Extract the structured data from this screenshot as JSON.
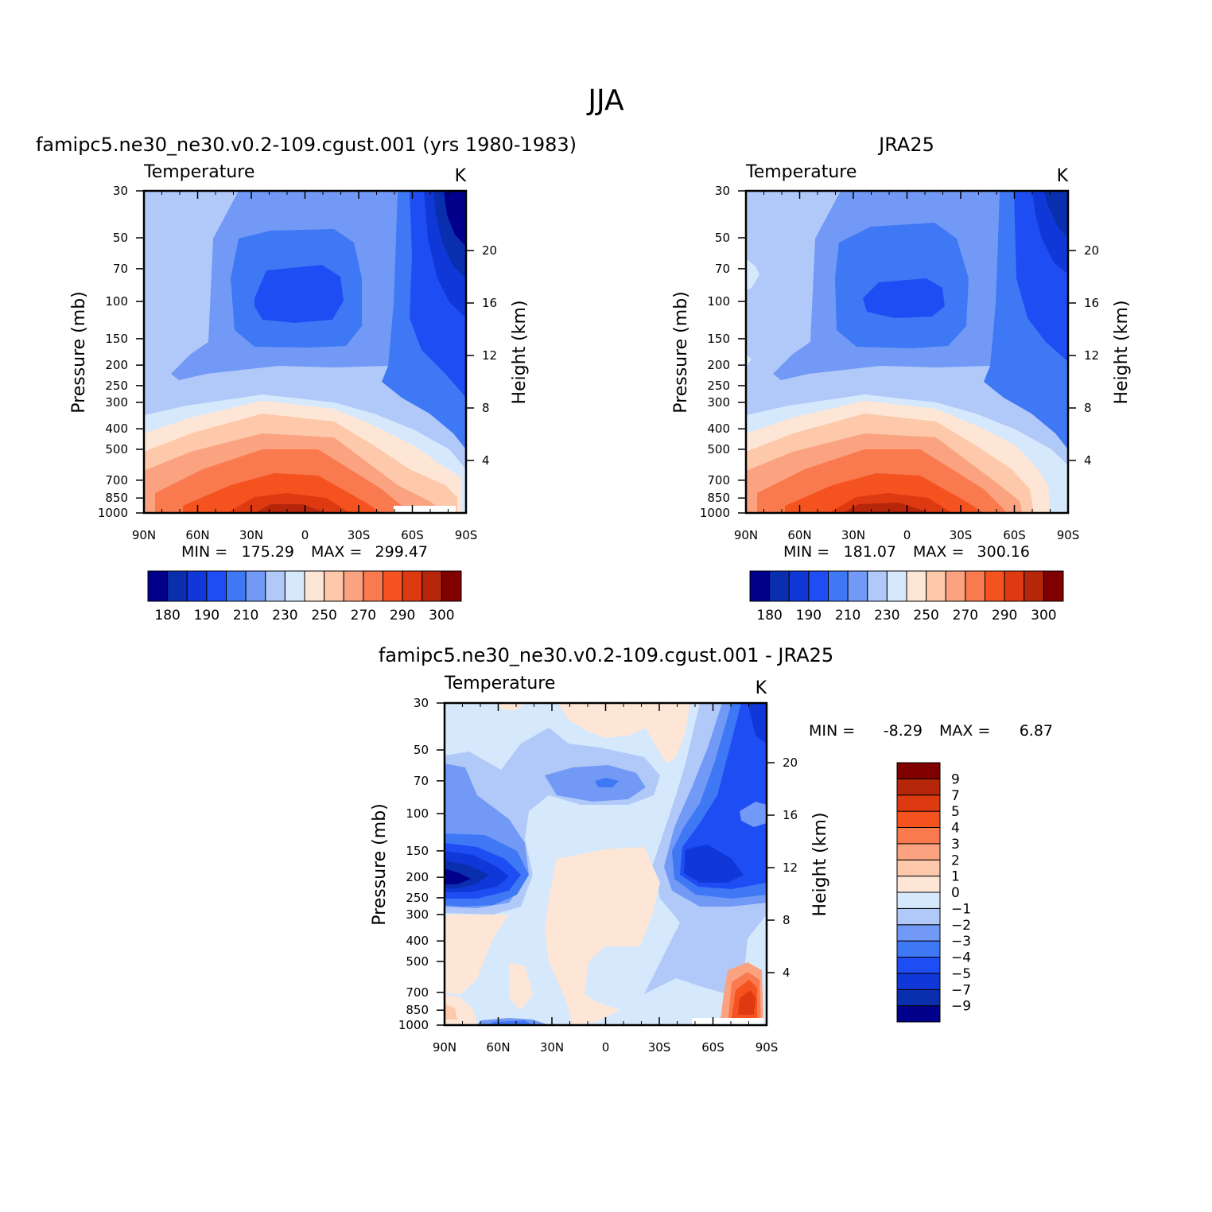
{
  "figure": {
    "title": "JJA"
  },
  "chart_data": [
    {
      "type": "heatmap",
      "title": "famipc5.ne30_ne30.v0.2-109.cgust.001 (yrs 1980-1983)",
      "variable": "Temperature",
      "units": "K",
      "ylabel": "Pressure (mb)",
      "ylabel_right": "Height (km)",
      "x_ticks": [
        "90N",
        "60N",
        "30N",
        "0",
        "30S",
        "60S",
        "90S"
      ],
      "y_ticks": [
        "30",
        "50",
        "70",
        "100",
        "150",
        "200",
        "250",
        "300",
        "400",
        "500",
        "700",
        "850",
        "1000"
      ],
      "height_ticks": [
        "4",
        "8",
        "12",
        "16",
        "20"
      ],
      "min_label": "MIN =",
      "min_value": "175.29",
      "max_label": "MAX =",
      "max_value": "299.47",
      "colorbar_labels": [
        "180",
        "190",
        "210",
        "230",
        "250",
        "270",
        "290",
        "300"
      ],
      "colorbar_levels": [
        180,
        185,
        190,
        200,
        210,
        220,
        230,
        240,
        250,
        260,
        270,
        280,
        290,
        295,
        300
      ],
      "colorbar_orientation": "horizontal"
    },
    {
      "type": "heatmap",
      "title": "JRA25",
      "variable": "Temperature",
      "units": "K",
      "ylabel": "Pressure (mb)",
      "ylabel_right": "Height (km)",
      "x_ticks": [
        "90N",
        "60N",
        "30N",
        "0",
        "30S",
        "60S",
        "90S"
      ],
      "y_ticks": [
        "30",
        "50",
        "70",
        "100",
        "150",
        "200",
        "250",
        "300",
        "400",
        "500",
        "700",
        "850",
        "1000"
      ],
      "height_ticks": [
        "4",
        "8",
        "12",
        "16",
        "20"
      ],
      "min_label": "MIN =",
      "min_value": "181.07",
      "max_label": "MAX =",
      "max_value": "300.16",
      "colorbar_labels": [
        "180",
        "190",
        "210",
        "230",
        "250",
        "270",
        "290",
        "300"
      ],
      "colorbar_levels": [
        180,
        185,
        190,
        200,
        210,
        220,
        230,
        240,
        250,
        260,
        270,
        280,
        290,
        295,
        300
      ],
      "colorbar_orientation": "horizontal"
    },
    {
      "type": "heatmap",
      "title": "famipc5.ne30_ne30.v0.2-109.cgust.001 - JRA25",
      "variable": "Temperature",
      "units": "K",
      "ylabel": "Pressure (mb)",
      "ylabel_right": "Height (km)",
      "x_ticks": [
        "90N",
        "60N",
        "30N",
        "0",
        "30S",
        "60S",
        "90S"
      ],
      "y_ticks": [
        "30",
        "50",
        "70",
        "100",
        "150",
        "200",
        "250",
        "300",
        "400",
        "500",
        "700",
        "850",
        "1000"
      ],
      "height_ticks": [
        "4",
        "8",
        "12",
        "16",
        "20"
      ],
      "min_label": "MIN =",
      "min_value": "-8.29",
      "max_label": "MAX =",
      "max_value": "6.87",
      "colorbar_labels": [
        "9",
        "7",
        "5",
        "4",
        "3",
        "2",
        "1",
        "0",
        "−1",
        "−2",
        "−3",
        "−4",
        "−5",
        "−7",
        "−9"
      ],
      "colorbar_levels": [
        -9,
        -7,
        -5,
        -4,
        -3,
        -2,
        -1,
        0,
        1,
        2,
        3,
        4,
        5,
        7,
        9
      ],
      "colorbar_orientation": "vertical"
    }
  ],
  "palette": {
    "colors_low_to_high": [
      "#00008B",
      "#0A2FAE",
      "#1038D8",
      "#1F4DF4",
      "#3F78F5",
      "#7199F5",
      "#B0C9F9",
      "#D6E8FB",
      "#FEE6D6",
      "#FDC9AA",
      "#FBA281",
      "#F97A4E",
      "#F4521E",
      "#DD3A12",
      "#B5260B",
      "#800000"
    ]
  }
}
